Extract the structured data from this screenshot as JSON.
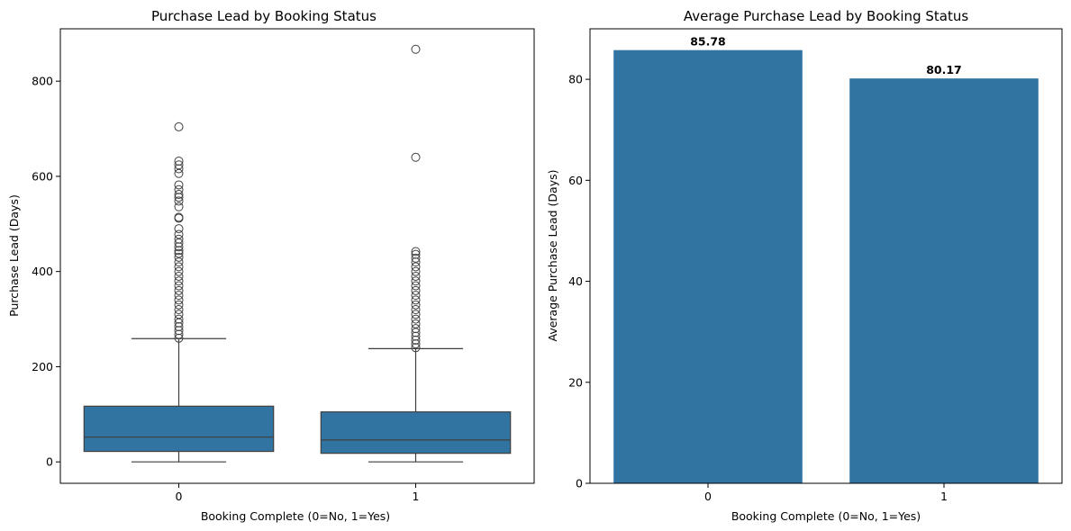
{
  "chart_data": [
    {
      "type": "box",
      "title": "Purchase Lead by Booking Status",
      "xlabel": "Booking Complete (0=No, 1=Yes)",
      "ylabel": "Purchase Lead (Days)",
      "categories": [
        "0",
        "1"
      ],
      "ylim": [
        -45,
        910
      ],
      "yticks": [
        0,
        200,
        400,
        600,
        800
      ],
      "color": "#3274a1",
      "boxes": [
        {
          "category": "0",
          "min": 0,
          "q1": 22,
          "median": 52,
          "q3": 117,
          "max": 259,
          "outliers": [
            260,
            268,
            276,
            284,
            292,
            300,
            310,
            320,
            330,
            340,
            350,
            360,
            370,
            380,
            390,
            400,
            410,
            420,
            430,
            438,
            444,
            452,
            460,
            468,
            478,
            490,
            512,
            514,
            536,
            548,
            556,
            562,
            572,
            582,
            606,
            616,
            624,
            632,
            704
          ]
        },
        {
          "category": "1",
          "min": 0,
          "q1": 18,
          "median": 46,
          "q3": 105,
          "max": 238,
          "outliers": [
            240,
            248,
            256,
            264,
            272,
            280,
            290,
            300,
            310,
            320,
            330,
            340,
            350,
            360,
            370,
            380,
            390,
            400,
            410,
            420,
            428,
            436,
            442,
            640,
            867
          ]
        }
      ]
    },
    {
      "type": "bar",
      "title": "Average Purchase Lead by Booking Status",
      "xlabel": "Booking Complete (0=No, 1=Yes)",
      "ylabel": "Average Purchase Lead (Days)",
      "categories": [
        "0",
        "1"
      ],
      "values": [
        85.78,
        80.17
      ],
      "data_labels": [
        "85.78",
        "80.17"
      ],
      "ylim": [
        0,
        90
      ],
      "yticks": [
        0,
        20,
        40,
        60,
        80
      ],
      "color": "#3274a1"
    }
  ]
}
